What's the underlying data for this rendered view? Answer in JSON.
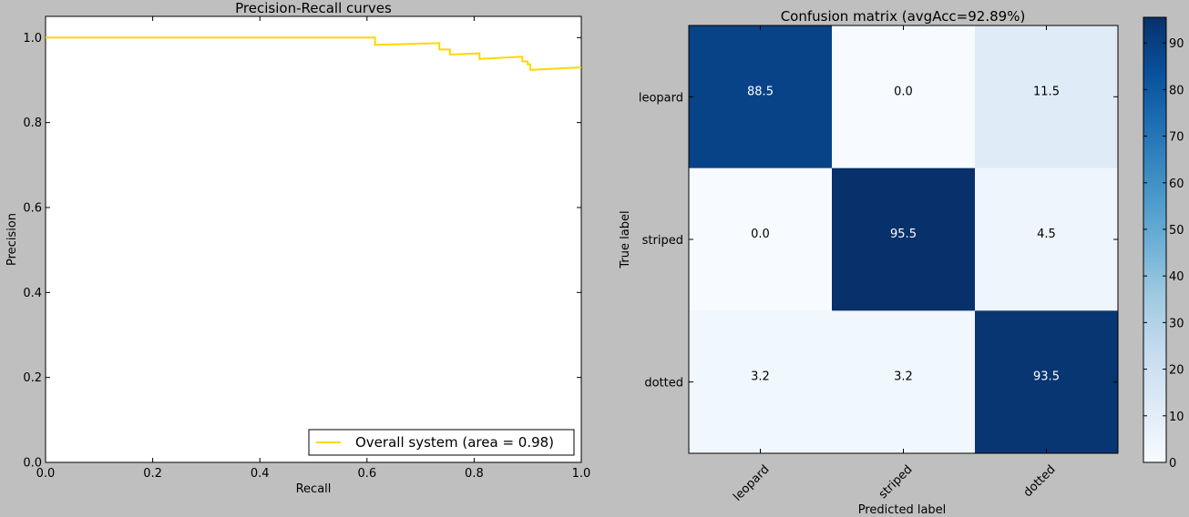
{
  "chart_data": [
    {
      "type": "line",
      "title": "Precision-Recall curves",
      "xlabel": "Recall",
      "ylabel": "Precision",
      "xlim": [
        0,
        1
      ],
      "ylim": [
        0,
        1.05
      ],
      "xticks": [
        0.0,
        0.2,
        0.4,
        0.6,
        0.8,
        1.0
      ],
      "xtick_labels": [
        "0.0",
        "0.2",
        "0.4",
        "0.6",
        "0.8",
        "1.0"
      ],
      "yticks": [
        0.0,
        0.2,
        0.4,
        0.6,
        0.8,
        1.0
      ],
      "ytick_labels": [
        "0.0",
        "0.2",
        "0.4",
        "0.6",
        "0.8",
        "1.0"
      ],
      "legend_position": "bottom-right",
      "series": [
        {
          "name": "Overall system (area = 0.98)",
          "color": "#ffd700",
          "x": [
            0.0,
            0.615,
            0.615,
            0.735,
            0.735,
            0.755,
            0.755,
            0.81,
            0.81,
            0.89,
            0.89,
            0.9,
            0.9,
            0.905,
            0.905,
            1.0
          ],
          "y": [
            1.0,
            1.0,
            0.983,
            0.987,
            0.972,
            0.972,
            0.96,
            0.963,
            0.95,
            0.955,
            0.944,
            0.944,
            0.937,
            0.937,
            0.924,
            0.93
          ]
        }
      ]
    },
    {
      "type": "heatmap",
      "title": "Confusion matrix (avgAcc=92.89%)",
      "xlabel": "Predicted label",
      "ylabel": "True label",
      "rows": [
        "leopard",
        "striped",
        "dotted"
      ],
      "columns": [
        "leopard",
        "striped",
        "dotted"
      ],
      "values": [
        [
          88.5,
          0.0,
          11.5
        ],
        [
          0.0,
          95.5,
          4.5
        ],
        [
          3.2,
          3.2,
          93.5
        ]
      ],
      "cell_labels": [
        [
          "88.5",
          "0.0",
          "11.5"
        ],
        [
          "0.0",
          "95.5",
          "4.5"
        ],
        [
          "3.2",
          "3.2",
          "93.5"
        ]
      ],
      "colormap": "Blues",
      "colorbar_range": [
        0,
        95.5
      ],
      "colorbar_ticks": [
        0,
        10,
        20,
        30,
        40,
        50,
        60,
        70,
        80,
        90
      ],
      "colorbar_tick_labels": [
        "0",
        "10",
        "20",
        "30",
        "40",
        "50",
        "60",
        "70",
        "80",
        "90"
      ]
    }
  ]
}
